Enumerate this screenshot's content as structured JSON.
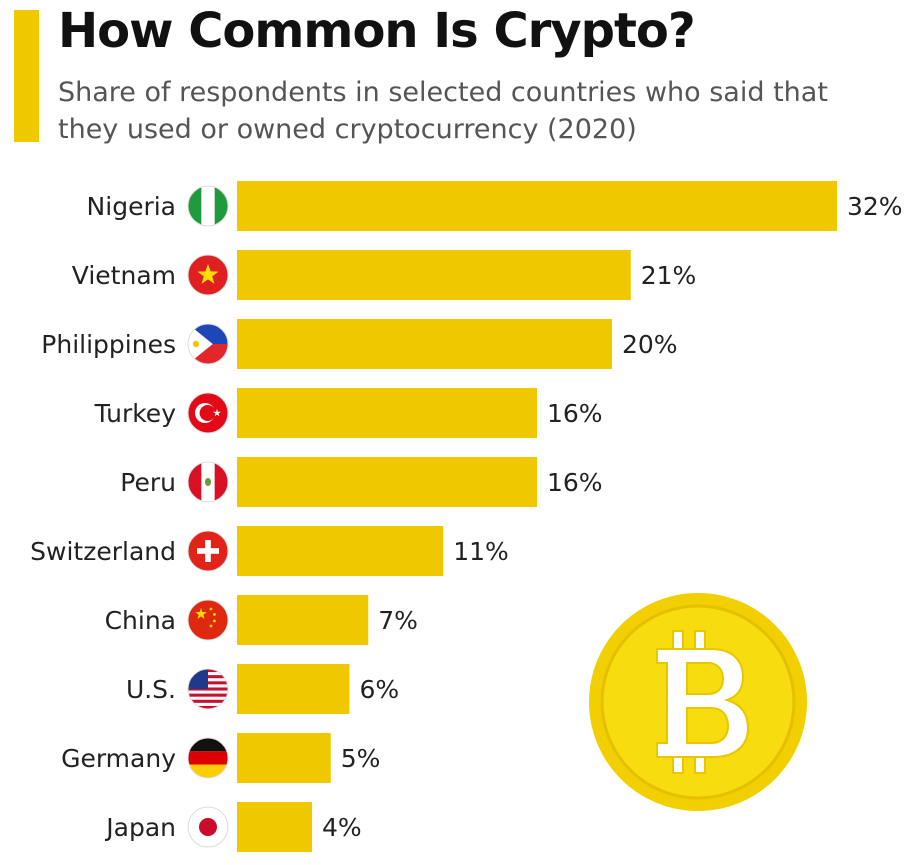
{
  "header": {
    "title": "How Common Is Crypto?",
    "subtitle": "Share of respondents in selected countries who said that they used or owned cryptocurrency (2020)"
  },
  "colors": {
    "accent": "#f0c800",
    "bar": "#f0c800",
    "text": "#222222",
    "coin": "#f4d000"
  },
  "chart_data": {
    "type": "bar",
    "orientation": "horizontal",
    "title": "How Common Is Crypto?",
    "subtitle": "Share of respondents in selected countries who said that they used or owned cryptocurrency (2020)",
    "unit": "%",
    "categories": [
      "Nigeria",
      "Vietnam",
      "Philippines",
      "Turkey",
      "Peru",
      "Switzerland",
      "China",
      "U.S.",
      "Germany",
      "Japan"
    ],
    "values": [
      32,
      21,
      20,
      16,
      16,
      11,
      7,
      6,
      5,
      4
    ],
    "labels": [
      "32%",
      "21%",
      "20%",
      "16%",
      "16%",
      "11%",
      "7%",
      "6%",
      "5%",
      "4%"
    ],
    "flag_icons": [
      "nigeria-flag-icon",
      "vietnam-flag-icon",
      "philippines-flag-icon",
      "turkey-flag-icon",
      "peru-flag-icon",
      "switzerland-flag-icon",
      "china-flag-icon",
      "us-flag-icon",
      "germany-flag-icon",
      "japan-flag-icon"
    ],
    "xlim": [
      0,
      32
    ],
    "grid": false,
    "legend": "none"
  },
  "decoration": {
    "icon": "bitcoin-coin-icon"
  }
}
